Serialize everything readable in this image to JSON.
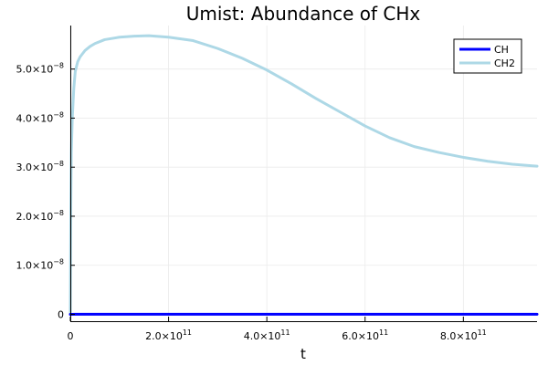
{
  "chart_data": {
    "type": "line",
    "title": "Umist: Abundance of CHx",
    "xlabel": "t",
    "ylabel": "",
    "xlim": [
      0,
      950000000000.0
    ],
    "ylim": [
      -1.4e-09,
      5.85e-08
    ],
    "grid": true,
    "legend_position": "top-right",
    "x_ticks": [
      {
        "value": 0,
        "mantissa": "0",
        "exponent": ""
      },
      {
        "value": 200000000000.0,
        "mantissa": "2.0×10",
        "exponent": "11"
      },
      {
        "value": 400000000000.0,
        "mantissa": "4.0×10",
        "exponent": "11"
      },
      {
        "value": 600000000000.0,
        "mantissa": "6.0×10",
        "exponent": "11"
      },
      {
        "value": 800000000000.0,
        "mantissa": "8.0×10",
        "exponent": "11"
      }
    ],
    "y_ticks": [
      {
        "value": 0,
        "mantissa": "0",
        "exponent": ""
      },
      {
        "value": 1e-08,
        "mantissa": "1.0×10",
        "exponent": "−8"
      },
      {
        "value": 2e-08,
        "mantissa": "2.0×10",
        "exponent": "−8"
      },
      {
        "value": 3e-08,
        "mantissa": "3.0×10",
        "exponent": "−8"
      },
      {
        "value": 4e-08,
        "mantissa": "4.0×10",
        "exponent": "−8"
      },
      {
        "value": 5e-08,
        "mantissa": "5.0×10",
        "exponent": "−8"
      }
    ],
    "series": [
      {
        "name": "CH",
        "color": "#0000ff",
        "x": [
          0,
          10000000000.0,
          50000000000.0,
          100000000000.0,
          200000000000.0,
          300000000000.0,
          400000000000.0,
          500000000000.0,
          600000000000.0,
          700000000000.0,
          800000000000.0,
          900000000000.0,
          950000000000.0
        ],
        "y": [
          0,
          2e-11,
          2e-11,
          2e-11,
          2e-11,
          2e-11,
          2e-11,
          2e-11,
          2e-11,
          2e-11,
          2e-11,
          2e-11,
          2e-11
        ]
      },
      {
        "name": "CH2",
        "color": "#add8e6",
        "x": [
          0,
          1000000000.0,
          2000000000.0,
          4000000000.0,
          7000000000.0,
          10000000000.0,
          15000000000.0,
          20000000000.0,
          30000000000.0,
          40000000000.0,
          50000000000.0,
          70000000000.0,
          100000000000.0,
          130000000000.0,
          160000000000.0,
          200000000000.0,
          250000000000.0,
          300000000000.0,
          350000000000.0,
          400000000000.0,
          450000000000.0,
          500000000000.0,
          550000000000.0,
          600000000000.0,
          650000000000.0,
          700000000000.0,
          750000000000.0,
          800000000000.0,
          850000000000.0,
          900000000000.0,
          950000000000.0
        ],
        "y": [
          0,
          2.2e-08,
          3.3e-08,
          4e-08,
          4.6e-08,
          4.95e-08,
          5.15e-08,
          5.25e-08,
          5.38e-08,
          5.46e-08,
          5.52e-08,
          5.6e-08,
          5.65e-08,
          5.67e-08,
          5.68e-08,
          5.65e-08,
          5.58e-08,
          5.42e-08,
          5.22e-08,
          4.98e-08,
          4.7e-08,
          4.4e-08,
          4.12e-08,
          3.84e-08,
          3.6e-08,
          3.42e-08,
          3.3e-08,
          3.2e-08,
          3.12e-08,
          3.06e-08,
          3.02e-08
        ]
      }
    ]
  }
}
